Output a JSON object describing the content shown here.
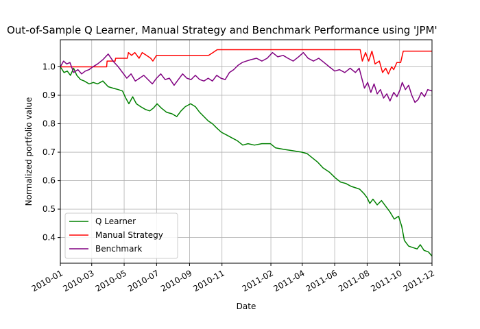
{
  "chart_data": {
    "type": "line",
    "title": "Out-of-Sample Q Learner, Manual Strategy and Benchmark Performance using 'JPM'",
    "xlabel": "Date",
    "ylabel": "Normalized portfolio value",
    "xlim": [
      "2010-01-01",
      "2011-12-01"
    ],
    "ylim": [
      0.31,
      1.095
    ],
    "x_ticks": [
      "2010-01",
      "2010-03",
      "2010-05",
      "2010-07",
      "2010-09",
      "2010-11",
      "2011-02",
      "2011-04",
      "2011-06",
      "2011-08",
      "2011-10",
      "2011-12"
    ],
    "y_ticks": [
      0.4,
      0.5,
      0.6,
      0.7,
      0.8,
      0.9,
      1.0
    ],
    "y_tick_labels": [
      "0.4",
      "0.5",
      "0.6",
      "0.7",
      "0.8",
      "0.9",
      "1.0"
    ],
    "grid": true,
    "legend_position": "lower-left",
    "series": [
      {
        "name": "Q Learner",
        "color": "#008000",
        "points": [
          [
            "2010-01-01",
            1.0
          ],
          [
            "2010-01-08",
            0.98
          ],
          [
            "2010-01-14",
            0.985
          ],
          [
            "2010-01-20",
            0.97
          ],
          [
            "2010-01-26",
            0.995
          ],
          [
            "2010-02-01",
            0.97
          ],
          [
            "2010-02-08",
            0.955
          ],
          [
            "2010-02-15",
            0.95
          ],
          [
            "2010-02-24",
            0.94
          ],
          [
            "2010-03-04",
            0.945
          ],
          [
            "2010-03-12",
            0.94
          ],
          [
            "2010-03-22",
            0.95
          ],
          [
            "2010-04-01",
            0.93
          ],
          [
            "2010-04-10",
            0.925
          ],
          [
            "2010-04-20",
            0.92
          ],
          [
            "2010-04-28",
            0.915
          ],
          [
            "2010-05-04",
            0.89
          ],
          [
            "2010-05-10",
            0.87
          ],
          [
            "2010-05-17",
            0.895
          ],
          [
            "2010-05-24",
            0.87
          ],
          [
            "2010-06-01",
            0.86
          ],
          [
            "2010-06-10",
            0.85
          ],
          [
            "2010-06-18",
            0.845
          ],
          [
            "2010-06-25",
            0.855
          ],
          [
            "2010-07-02",
            0.87
          ],
          [
            "2010-07-10",
            0.855
          ],
          [
            "2010-07-20",
            0.84
          ],
          [
            "2010-07-30",
            0.835
          ],
          [
            "2010-08-08",
            0.825
          ],
          [
            "2010-08-16",
            0.845
          ],
          [
            "2010-08-24",
            0.86
          ],
          [
            "2010-09-03",
            0.87
          ],
          [
            "2010-09-12",
            0.86
          ],
          [
            "2010-09-20",
            0.84
          ],
          [
            "2010-09-28",
            0.825
          ],
          [
            "2010-10-06",
            0.81
          ],
          [
            "2010-10-14",
            0.8
          ],
          [
            "2010-10-22",
            0.785
          ],
          [
            "2010-10-31",
            0.77
          ],
          [
            "2010-11-10",
            0.76
          ],
          [
            "2010-11-20",
            0.75
          ],
          [
            "2010-11-30",
            0.74
          ],
          [
            "2010-12-10",
            0.725
          ],
          [
            "2010-12-20",
            0.73
          ],
          [
            "2011-01-01",
            0.725
          ],
          [
            "2011-01-15",
            0.73
          ],
          [
            "2011-01-31",
            0.73
          ],
          [
            "2011-02-10",
            0.715
          ],
          [
            "2011-02-25",
            0.71
          ],
          [
            "2011-03-15",
            0.705
          ],
          [
            "2011-03-31",
            0.7
          ],
          [
            "2011-04-10",
            0.695
          ],
          [
            "2011-04-20",
            0.68
          ],
          [
            "2011-04-30",
            0.665
          ],
          [
            "2011-05-10",
            0.645
          ],
          [
            "2011-05-22",
            0.63
          ],
          [
            "2011-06-02",
            0.61
          ],
          [
            "2011-06-12",
            0.595
          ],
          [
            "2011-06-22",
            0.59
          ],
          [
            "2011-07-02",
            0.58
          ],
          [
            "2011-07-10",
            0.575
          ],
          [
            "2011-07-18",
            0.57
          ],
          [
            "2011-07-26",
            0.555
          ],
          [
            "2011-08-01",
            0.54
          ],
          [
            "2011-08-06",
            0.52
          ],
          [
            "2011-08-12",
            0.535
          ],
          [
            "2011-08-20",
            0.515
          ],
          [
            "2011-08-28",
            0.53
          ],
          [
            "2011-09-05",
            0.51
          ],
          [
            "2011-09-13",
            0.49
          ],
          [
            "2011-09-21",
            0.465
          ],
          [
            "2011-09-29",
            0.475
          ],
          [
            "2011-10-05",
            0.44
          ],
          [
            "2011-10-10",
            0.39
          ],
          [
            "2011-10-18",
            0.37
          ],
          [
            "2011-10-26",
            0.365
          ],
          [
            "2011-11-03",
            0.36
          ],
          [
            "2011-11-09",
            0.375
          ],
          [
            "2011-11-16",
            0.355
          ],
          [
            "2011-11-24",
            0.35
          ],
          [
            "2011-12-01",
            0.335
          ]
        ]
      },
      {
        "name": "Manual Strategy",
        "color": "#ff0000",
        "points": [
          [
            "2010-01-01",
            1.0
          ],
          [
            "2010-03-29",
            1.0
          ],
          [
            "2010-03-30",
            1.02
          ],
          [
            "2010-04-14",
            1.02
          ],
          [
            "2010-04-15",
            1.03
          ],
          [
            "2010-05-07",
            1.03
          ],
          [
            "2010-05-09",
            1.05
          ],
          [
            "2010-05-15",
            1.04
          ],
          [
            "2010-05-21",
            1.05
          ],
          [
            "2010-05-29",
            1.03
          ],
          [
            "2010-06-04",
            1.05
          ],
          [
            "2010-06-12",
            1.04
          ],
          [
            "2010-06-20",
            1.03
          ],
          [
            "2010-06-24",
            1.02
          ],
          [
            "2010-07-01",
            1.04
          ],
          [
            "2010-10-07",
            1.04
          ],
          [
            "2010-10-15",
            1.05
          ],
          [
            "2010-10-23",
            1.06
          ],
          [
            "2011-07-19",
            1.06
          ],
          [
            "2011-07-23",
            1.02
          ],
          [
            "2011-07-29",
            1.05
          ],
          [
            "2011-08-04",
            1.02
          ],
          [
            "2011-08-10",
            1.055
          ],
          [
            "2011-08-16",
            1.01
          ],
          [
            "2011-08-24",
            1.02
          ],
          [
            "2011-08-30",
            0.98
          ],
          [
            "2011-09-05",
            0.995
          ],
          [
            "2011-09-10",
            0.975
          ],
          [
            "2011-09-16",
            1.0
          ],
          [
            "2011-09-20",
            0.99
          ],
          [
            "2011-09-26",
            1.015
          ],
          [
            "2011-10-03",
            1.015
          ],
          [
            "2011-10-08",
            1.055
          ],
          [
            "2011-12-01",
            1.055
          ]
        ]
      },
      {
        "name": "Benchmark",
        "color": "#800080",
        "points": [
          [
            "2010-01-01",
            1.0
          ],
          [
            "2010-01-07",
            1.02
          ],
          [
            "2010-01-13",
            1.01
          ],
          [
            "2010-01-19",
            1.015
          ],
          [
            "2010-01-26",
            0.98
          ],
          [
            "2010-02-03",
            0.99
          ],
          [
            "2010-02-10",
            0.975
          ],
          [
            "2010-02-17",
            0.985
          ],
          [
            "2010-02-24",
            0.99
          ],
          [
            "2010-03-03",
            1.0
          ],
          [
            "2010-03-12",
            1.01
          ],
          [
            "2010-03-22",
            1.025
          ],
          [
            "2010-04-01",
            1.045
          ],
          [
            "2010-04-10",
            1.02
          ],
          [
            "2010-04-20",
            1.0
          ],
          [
            "2010-04-28",
            0.98
          ],
          [
            "2010-05-06",
            0.96
          ],
          [
            "2010-05-14",
            0.975
          ],
          [
            "2010-05-22",
            0.95
          ],
          [
            "2010-05-30",
            0.96
          ],
          [
            "2010-06-07",
            0.97
          ],
          [
            "2010-06-15",
            0.955
          ],
          [
            "2010-06-23",
            0.94
          ],
          [
            "2010-07-01",
            0.96
          ],
          [
            "2010-07-09",
            0.975
          ],
          [
            "2010-07-17",
            0.955
          ],
          [
            "2010-07-25",
            0.96
          ],
          [
            "2010-08-03",
            0.935
          ],
          [
            "2010-08-11",
            0.955
          ],
          [
            "2010-08-19",
            0.975
          ],
          [
            "2010-08-27",
            0.96
          ],
          [
            "2010-09-04",
            0.955
          ],
          [
            "2010-09-12",
            0.97
          ],
          [
            "2010-09-20",
            0.955
          ],
          [
            "2010-09-28",
            0.95
          ],
          [
            "2010-10-06",
            0.96
          ],
          [
            "2010-10-14",
            0.95
          ],
          [
            "2010-10-22",
            0.97
          ],
          [
            "2010-10-30",
            0.96
          ],
          [
            "2010-11-07",
            0.955
          ],
          [
            "2010-11-15",
            0.98
          ],
          [
            "2010-11-23",
            0.99
          ],
          [
            "2010-12-01",
            1.005
          ],
          [
            "2010-12-09",
            1.015
          ],
          [
            "2010-12-17",
            1.02
          ],
          [
            "2010-12-25",
            1.025
          ],
          [
            "2011-01-05",
            1.03
          ],
          [
            "2011-01-15",
            1.02
          ],
          [
            "2011-01-25",
            1.03
          ],
          [
            "2011-02-04",
            1.05
          ],
          [
            "2011-02-14",
            1.035
          ],
          [
            "2011-02-24",
            1.04
          ],
          [
            "2011-03-05",
            1.03
          ],
          [
            "2011-03-15",
            1.02
          ],
          [
            "2011-03-25",
            1.035
          ],
          [
            "2011-04-03",
            1.05
          ],
          [
            "2011-04-12",
            1.03
          ],
          [
            "2011-04-22",
            1.02
          ],
          [
            "2011-05-02",
            1.03
          ],
          [
            "2011-05-12",
            1.015
          ],
          [
            "2011-05-22",
            1.0
          ],
          [
            "2011-06-01",
            0.985
          ],
          [
            "2011-06-10",
            0.99
          ],
          [
            "2011-06-20",
            0.98
          ],
          [
            "2011-06-30",
            0.995
          ],
          [
            "2011-07-10",
            0.98
          ],
          [
            "2011-07-17",
            0.995
          ],
          [
            "2011-07-22",
            0.96
          ],
          [
            "2011-07-27",
            0.925
          ],
          [
            "2011-08-02",
            0.945
          ],
          [
            "2011-08-08",
            0.91
          ],
          [
            "2011-08-14",
            0.94
          ],
          [
            "2011-08-20",
            0.905
          ],
          [
            "2011-08-26",
            0.92
          ],
          [
            "2011-09-01",
            0.89
          ],
          [
            "2011-09-07",
            0.905
          ],
          [
            "2011-09-13",
            0.88
          ],
          [
            "2011-09-20",
            0.91
          ],
          [
            "2011-09-26",
            0.895
          ],
          [
            "2011-10-02",
            0.92
          ],
          [
            "2011-10-06",
            0.945
          ],
          [
            "2011-10-12",
            0.92
          ],
          [
            "2011-10-18",
            0.935
          ],
          [
            "2011-10-24",
            0.9
          ],
          [
            "2011-10-30",
            0.875
          ],
          [
            "2011-11-05",
            0.885
          ],
          [
            "2011-11-11",
            0.91
          ],
          [
            "2011-11-17",
            0.895
          ],
          [
            "2011-11-23",
            0.92
          ],
          [
            "2011-12-01",
            0.915
          ]
        ]
      }
    ]
  }
}
